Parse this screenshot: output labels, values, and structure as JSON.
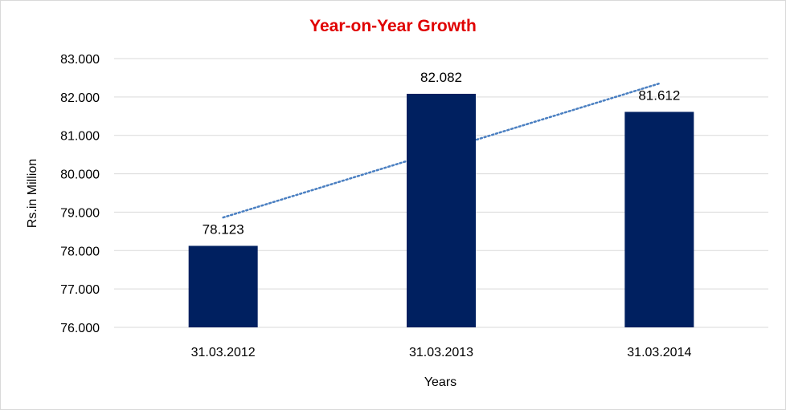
{
  "chart_data": {
    "type": "bar",
    "title": "Year-on-Year Growth",
    "xlabel": "Years",
    "ylabel": "Rs.in Million",
    "categories": [
      "31.03.2012",
      "31.03.2013",
      "31.03.2014"
    ],
    "values": [
      78.123,
      82.082,
      81.612
    ],
    "data_labels": [
      "78.123",
      "82.082",
      "81.612"
    ],
    "ylim": [
      76,
      83
    ],
    "yticks": [
      76,
      77,
      78,
      79,
      80,
      81,
      82,
      83
    ],
    "ytick_labels": [
      "76.000",
      "77.000",
      "78.000",
      "79.000",
      "80.000",
      "81.000",
      "82.000",
      "83.000"
    ],
    "grid": true,
    "trendline": {
      "type": "linear",
      "style": "dotted"
    },
    "colors": {
      "bar": "#002060",
      "title": "#e00000",
      "trendline": "#4a7fc1",
      "grid": "#d9d9d9"
    }
  }
}
